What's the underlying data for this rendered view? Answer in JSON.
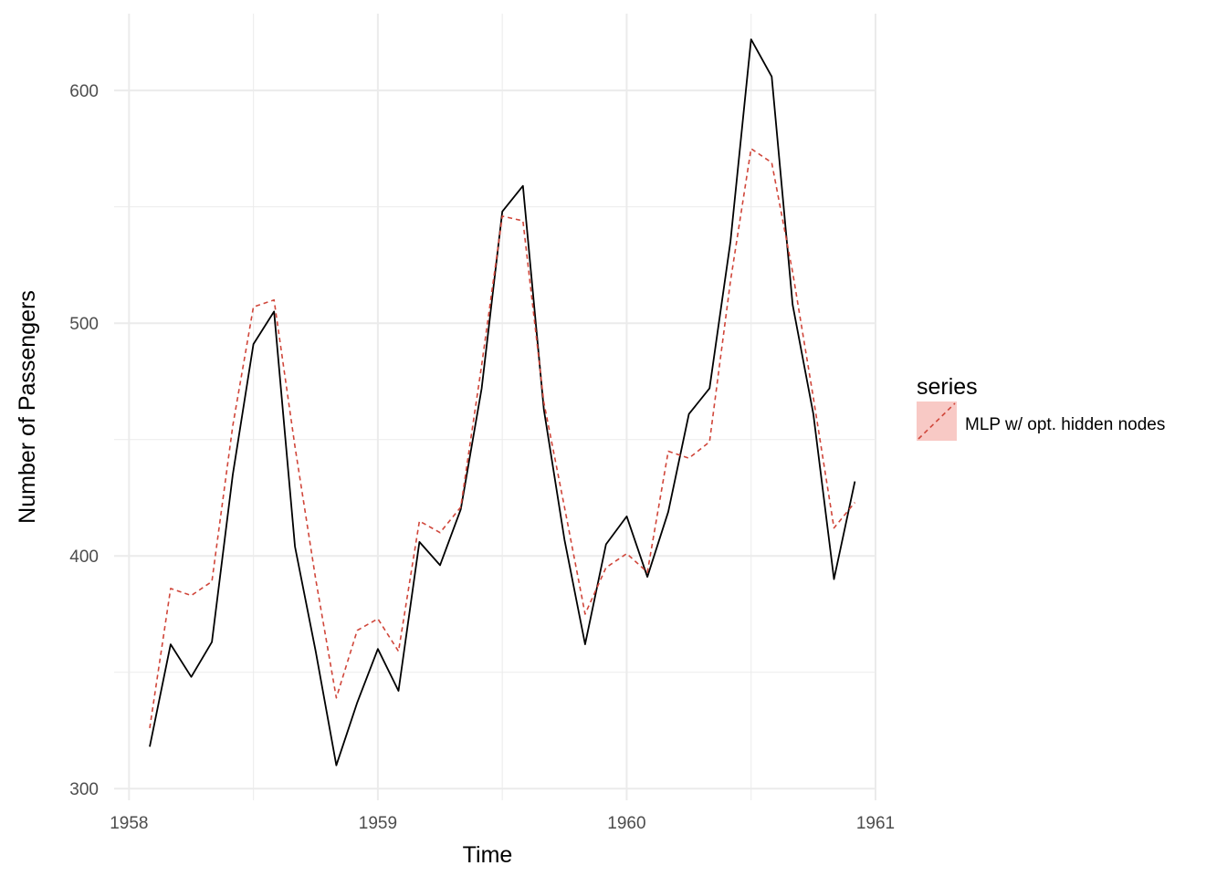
{
  "chart_data": {
    "type": "line",
    "title": "",
    "xlabel": "Time",
    "ylabel": "Number of Passengers",
    "xlim": [
      1957.94,
      1961.0
    ],
    "ylim": [
      295,
      633
    ],
    "x_ticks": [
      1958,
      1959,
      1960,
      1961
    ],
    "y_ticks": [
      300,
      400,
      500,
      600
    ],
    "grid": true,
    "legend": {
      "title": "series",
      "placement": "right",
      "entries": [
        "MLP w/ opt. hidden nodes"
      ]
    },
    "x": [
      1958.083,
      1958.167,
      1958.25,
      1958.333,
      1958.417,
      1958.5,
      1958.583,
      1958.667,
      1958.75,
      1958.833,
      1958.917,
      1959.0,
      1959.083,
      1959.167,
      1959.25,
      1959.333,
      1959.417,
      1959.5,
      1959.583,
      1959.667,
      1959.75,
      1959.833,
      1959.917,
      1960.0,
      1960.083,
      1960.167,
      1960.25,
      1960.333,
      1960.417,
      1960.5,
      1960.583,
      1960.667,
      1960.75,
      1960.833,
      1960.917
    ],
    "series": [
      {
        "values": [
          318,
          362,
          348,
          363,
          435,
          491,
          505,
          404,
          359,
          310,
          337,
          360,
          342,
          406,
          396,
          420,
          472,
          548,
          559,
          463,
          407,
          362,
          405,
          417,
          391,
          419,
          461,
          472,
          535,
          622,
          606,
          508,
          461,
          390,
          432
        ],
        "color": "#000000",
        "dash": "solid"
      },
      {
        "name": "MLP w/ opt. hidden nodes",
        "values": [
          326,
          386,
          383,
          389,
          456,
          507,
          510,
          447,
          390,
          339,
          368,
          373,
          359,
          415,
          410,
          421,
          482,
          546,
          544,
          466,
          421,
          375,
          395,
          401,
          393,
          445,
          442,
          449,
          518,
          575,
          569,
          522,
          468,
          412,
          423
        ],
        "color": "#d0463a",
        "dash": "dashed"
      }
    ],
    "colors": {
      "panel_grid": "#ebebeb",
      "legend_fill": "#f8c9c5"
    }
  }
}
